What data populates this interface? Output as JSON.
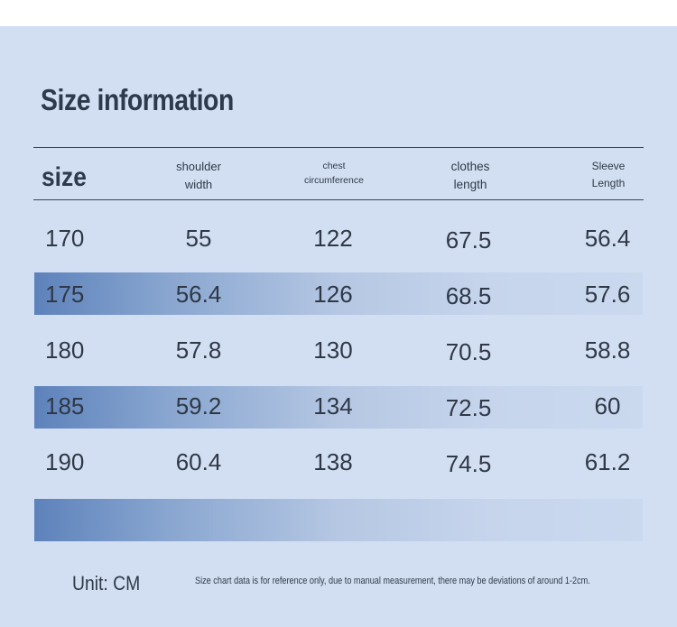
{
  "title": "Size information",
  "headers": {
    "size": "size",
    "shoulder": [
      "shoulder",
      "width"
    ],
    "chest": [
      "chest",
      "circumference"
    ],
    "clothes": [
      "clothes",
      "length"
    ],
    "sleeve": [
      "Sleeve",
      "Length"
    ]
  },
  "rows": [
    [
      "170",
      "55",
      "122",
      "67.5",
      "56.4"
    ],
    [
      "175",
      "56.4",
      "126",
      "68.5",
      "57.6"
    ],
    [
      "180",
      "57.8",
      "130",
      "70.5",
      "58.8"
    ],
    [
      "185",
      "59.2",
      "134",
      "72.5",
      "60"
    ],
    [
      "190",
      "60.4",
      "138",
      "74.5",
      "61.2"
    ]
  ],
  "unit": "Unit: CM",
  "note": "Size chart data is for reference only, due to manual measurement, there may be deviations of around 1-2cm.",
  "colors": {
    "background": "#d2dff3",
    "band_start": "#5d82bb",
    "text": "#2f3a48"
  }
}
